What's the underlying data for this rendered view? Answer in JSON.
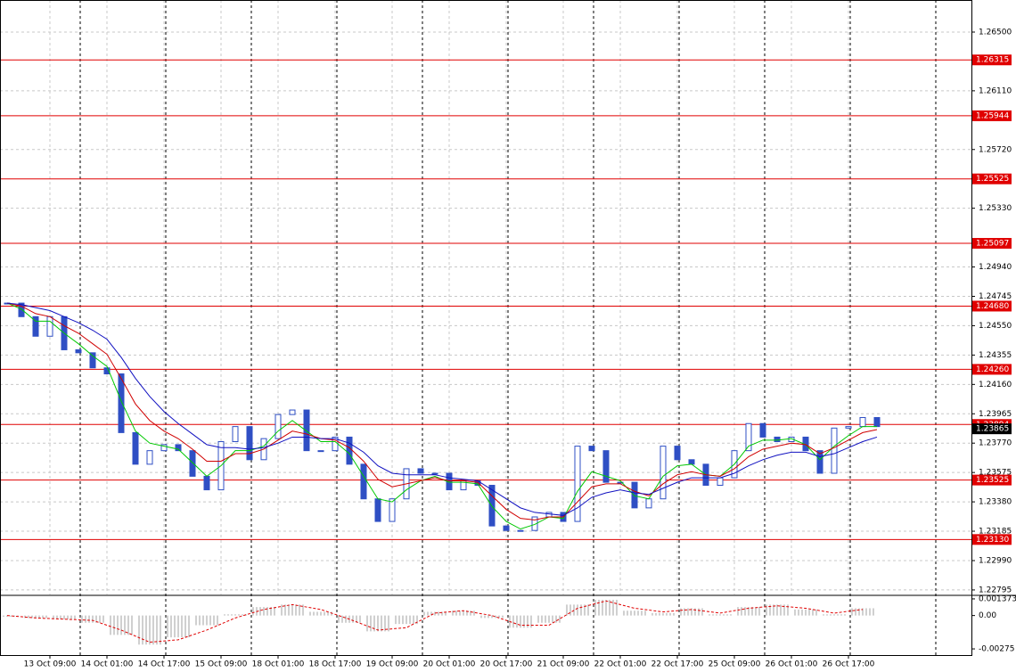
{
  "chart_data": {
    "type": "candlestick",
    "categories": [
      null,
      null,
      null,
      "13 Oct 09:00",
      null,
      null,
      null,
      "14 Oct 01:00",
      null,
      null,
      null,
      "14 Oct 17:00",
      null,
      null,
      null,
      "15 Oct 09:00",
      null,
      null,
      null,
      "18 Oct 01:00",
      null,
      null,
      null,
      "18 Oct 17:00",
      null,
      null,
      null,
      "19 Oct 09:00",
      null,
      null,
      null,
      "20 Oct 01:00",
      null,
      null,
      null,
      "20 Oct 17:00",
      null,
      null,
      null,
      "21 Oct 09:00",
      null,
      null,
      null,
      "22 Oct 01:00",
      null,
      null,
      null,
      "22 Oct 17:00",
      null,
      null,
      null,
      "25 Oct 09:00",
      null,
      null,
      null,
      "26 Oct 01:00",
      null,
      null,
      null,
      "26 Oct 17:00",
      null,
      null
    ],
    "series": [
      {
        "name": "Close",
        "color": "#2f4fc4",
        "values": [
          1.247,
          1.2461,
          1.2448,
          1.2461,
          1.2439,
          1.2437,
          1.2427,
          1.2423,
          1.2384,
          1.2363,
          1.2372,
          1.2376,
          1.2372,
          1.2355,
          1.2346,
          1.2378,
          1.2388,
          1.2366,
          1.238,
          1.2396,
          1.2399,
          1.2372,
          1.2372,
          1.2381,
          1.2363,
          1.234,
          1.2325,
          1.234,
          1.236,
          1.2357,
          1.2357,
          1.2346,
          1.2352,
          1.2349,
          1.2322,
          1.2319,
          1.2319,
          1.2328,
          1.2331,
          1.2325,
          1.2375,
          1.2372,
          1.2351,
          1.2351,
          1.2334,
          1.234,
          1.2375,
          1.2366,
          1.2363,
          1.2349,
          1.2354,
          1.2372,
          1.239,
          1.2381,
          1.2378,
          1.2381,
          1.2372,
          1.2357,
          1.2387,
          1.2388,
          1.2394,
          1.2388
        ]
      },
      {
        "name": "MA fast",
        "color": "#00c800",
        "values": [
          1.247,
          1.2466,
          1.2458,
          1.2458,
          1.245,
          1.2443,
          1.2435,
          1.2428,
          1.2405,
          1.2385,
          1.2377,
          1.2375,
          1.2373,
          1.2364,
          1.2355,
          1.2362,
          1.2372,
          1.2372,
          1.2375,
          1.2385,
          1.2392,
          1.2385,
          1.2378,
          1.2378,
          1.237,
          1.2355,
          1.234,
          1.2338,
          1.2346,
          1.2352,
          1.2355,
          1.2351,
          1.2351,
          1.235,
          1.2335,
          1.2325,
          1.232,
          1.2323,
          1.2328,
          1.2327,
          1.2345,
          1.2358,
          1.2355,
          1.2352,
          1.2342,
          1.234,
          1.2355,
          1.2362,
          1.2363,
          1.2356,
          1.2355,
          1.2363,
          1.2375,
          1.2379,
          1.2379,
          1.238,
          1.2376,
          1.2366,
          1.2375,
          1.2382,
          1.2388,
          1.2388
        ]
      },
      {
        "name": "MA medium",
        "color": "#d00000",
        "values": [
          1.247,
          1.2468,
          1.2463,
          1.2461,
          1.2455,
          1.245,
          1.2443,
          1.2436,
          1.242,
          1.2403,
          1.2392,
          1.2385,
          1.238,
          1.2373,
          1.2365,
          1.2365,
          1.237,
          1.237,
          1.2373,
          1.2379,
          1.2385,
          1.2383,
          1.238,
          1.2379,
          1.2374,
          1.2365,
          1.2353,
          1.2348,
          1.235,
          1.2352,
          1.2354,
          1.2352,
          1.2352,
          1.2351,
          1.2342,
          1.2333,
          1.2327,
          1.2326,
          1.2328,
          1.2328,
          1.2338,
          1.2348,
          1.235,
          1.235,
          1.2345,
          1.2342,
          1.235,
          1.2356,
          1.2358,
          1.2356,
          1.2355,
          1.236,
          1.2368,
          1.2373,
          1.2375,
          1.2377,
          1.2376,
          1.237,
          1.2374,
          1.2379,
          1.2384,
          1.2386
        ]
      },
      {
        "name": "MA slow",
        "color": "#1010c0",
        "values": [
          1.247,
          1.2469,
          1.2467,
          1.2465,
          1.2461,
          1.2457,
          1.2452,
          1.2446,
          1.2434,
          1.242,
          1.2408,
          1.2398,
          1.239,
          1.2383,
          1.2376,
          1.2374,
          1.2374,
          1.2373,
          1.2374,
          1.2377,
          1.2381,
          1.2381,
          1.238,
          1.238,
          1.2377,
          1.2371,
          1.2362,
          1.2357,
          1.2356,
          1.2356,
          1.2356,
          1.2354,
          1.2353,
          1.2352,
          1.2346,
          1.234,
          1.2334,
          1.2331,
          1.233,
          1.2329,
          1.2334,
          1.2341,
          1.2344,
          1.2346,
          1.2344,
          1.2343,
          1.2347,
          1.2351,
          1.2354,
          1.2354,
          1.2354,
          1.2357,
          1.2362,
          1.2366,
          1.2369,
          1.2371,
          1.2371,
          1.2368,
          1.237,
          1.2374,
          1.2378,
          1.2381
        ]
      }
    ],
    "ylim": [
      1.22765,
      1.26713
    ],
    "yticks": [
      {
        "value": 1.265,
        "label": "1.26500"
      },
      {
        "value": 1.2611,
        "label": "1.26110"
      },
      {
        "value": 1.2572,
        "label": "1.25720"
      },
      {
        "value": 1.2533,
        "label": "1.25330"
      },
      {
        "value": 1.2494,
        "label": "1.24940"
      },
      {
        "value": 1.24745,
        "label": "1.24745"
      },
      {
        "value": 1.2455,
        "label": "1.24550"
      },
      {
        "value": 1.24355,
        "label": "1.24355"
      },
      {
        "value": 1.2416,
        "label": "1.24160"
      },
      {
        "value": 1.23965,
        "label": "1.23965"
      },
      {
        "value": 1.2377,
        "label": "1.23770"
      },
      {
        "value": 1.23575,
        "label": "1.23575"
      },
      {
        "value": 1.2338,
        "label": "1.23380"
      },
      {
        "value": 1.23185,
        "label": "1.23185"
      },
      {
        "value": 1.2299,
        "label": "1.22990"
      },
      {
        "value": 1.22795,
        "label": "1.22795"
      }
    ],
    "levels": {
      "color": "#e00000",
      "values": [
        {
          "value": 1.26315,
          "label": "1.26315"
        },
        {
          "value": 1.25944,
          "label": "1.25944"
        },
        {
          "value": 1.25525,
          "label": "1.25525"
        },
        {
          "value": 1.25097,
          "label": "1.25097"
        },
        {
          "value": 1.2468,
          "label": "1.24680"
        },
        {
          "value": 1.2426,
          "label": "1.24260"
        },
        {
          "value": 1.23894,
          "label": "1.23894"
        },
        {
          "value": 1.23525,
          "label": "1.23525"
        },
        {
          "value": 1.2313,
          "label": "1.23130"
        }
      ]
    },
    "current_price": {
      "value": 1.23865,
      "label": "1.23865"
    },
    "grid": true,
    "oscillator": {
      "ylim": [
        -0.00326,
        0.00159
      ],
      "yticks": [
        {
          "value": 0.001373,
          "label": "0.001373"
        },
        {
          "value": 0,
          "label": "0.00"
        },
        {
          "value": -0.00275,
          "label": "-0.00275"
        }
      ],
      "histogram": {
        "color": "#a0a0a0",
        "values": [
          -0.0001,
          -0.0002,
          -0.0003,
          -0.0006,
          -0.0016,
          -0.0024,
          -0.0018,
          -0.0008,
          0.0001,
          0.0007,
          0.0009,
          0.0003,
          -0.0006,
          -0.0013,
          -0.0007,
          0.0003,
          0.0004,
          -0.0002,
          -0.001,
          -0.0006,
          0.0009,
          0.0013,
          0.0004,
          0.0002,
          0.0006,
          0.0001,
          0.0007,
          0.0009,
          0.0005,
          0.0001,
          0.0006
        ]
      },
      "signal": {
        "color": "#e00000",
        "values": [
          0,
          -0.0002,
          -0.0003,
          -0.0004,
          -0.0012,
          -0.0022,
          -0.002,
          -0.0012,
          -0.0002,
          0.0005,
          0.0009,
          0.0005,
          -0.0003,
          -0.0012,
          -0.001,
          0.0002,
          0.0004,
          0,
          -0.0008,
          -0.0008,
          0.0006,
          0.0012,
          0.0006,
          0.0003,
          0.0005,
          0.0002,
          0.0006,
          0.0008,
          0.0006,
          0.0002,
          0.0005
        ]
      }
    }
  }
}
